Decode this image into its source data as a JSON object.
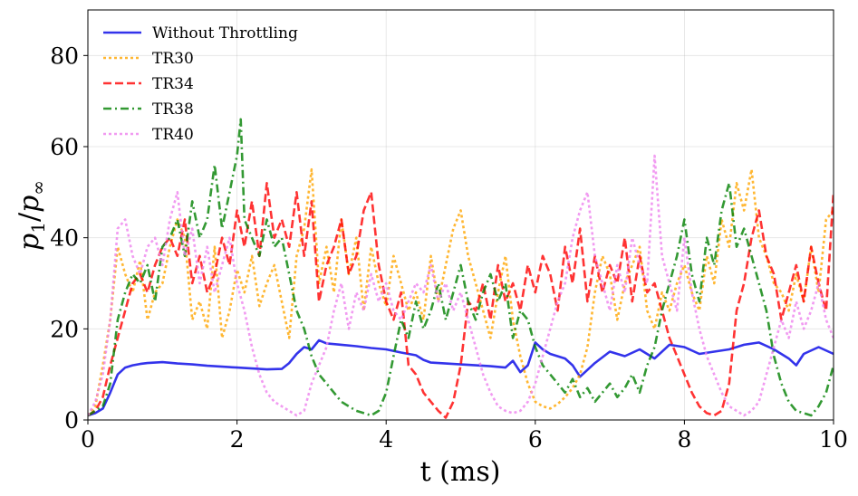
{
  "chart_data": {
    "type": "line",
    "title": "",
    "xlabel": "t (ms)",
    "ylabel_main": "p",
    "ylabel_num_sub": "1",
    "ylabel_slash": "/",
    "ylabel_den_sub": "∞",
    "xlim": [
      0,
      10
    ],
    "ylim": [
      0,
      90
    ],
    "xticks": [
      0,
      2,
      4,
      6,
      8,
      10
    ],
    "yticks": [
      0,
      20,
      40,
      60,
      80
    ],
    "grid": true,
    "legend_position": "top-left",
    "series": [
      {
        "name": "Without Throttling",
        "color": "#0000e6",
        "dash": "solid",
        "x": [
          0,
          0.1,
          0.2,
          0.3,
          0.4,
          0.5,
          0.6,
          0.7,
          0.8,
          0.9,
          1.0,
          1.2,
          1.4,
          1.6,
          1.8,
          2.0,
          2.2,
          2.4,
          2.6,
          2.7,
          2.8,
          2.9,
          3.0,
          3.1,
          3.2,
          3.4,
          3.6,
          3.8,
          4.0,
          4.2,
          4.4,
          4.5,
          4.6,
          4.8,
          5.0,
          5.2,
          5.4,
          5.6,
          5.7,
          5.8,
          5.9,
          6.0,
          6.1,
          6.2,
          6.4,
          6.5,
          6.6,
          6.8,
          7.0,
          7.2,
          7.4,
          7.6,
          7.8,
          8.0,
          8.2,
          8.4,
          8.6,
          8.8,
          9.0,
          9.2,
          9.4,
          9.5,
          9.6,
          9.8,
          10.0
        ],
        "values": [
          1,
          1.5,
          2.5,
          6,
          10,
          11.5,
          12,
          12.3,
          12.5,
          12.6,
          12.7,
          12.4,
          12.2,
          11.9,
          11.7,
          11.5,
          11.3,
          11.1,
          11.2,
          12.5,
          14.5,
          16,
          15.5,
          17.5,
          16.8,
          16.5,
          16.2,
          15.8,
          15.5,
          14.8,
          14.2,
          13.2,
          12.6,
          12.4,
          12.2,
          12,
          11.8,
          11.5,
          13,
          10.5,
          12,
          17,
          15.5,
          14.5,
          13.5,
          12,
          9.5,
          12.5,
          15,
          14,
          15.5,
          13.5,
          16.5,
          16,
          14.5,
          15,
          15.5,
          16.5,
          17,
          15.5,
          13.5,
          12,
          14.5,
          16,
          14.5
        ]
      },
      {
        "name": "TR30",
        "color": "#ffa500",
        "dash": "dotted",
        "x": [
          0,
          0.1,
          0.2,
          0.3,
          0.4,
          0.5,
          0.6,
          0.7,
          0.8,
          0.9,
          1.0,
          1.1,
          1.2,
          1.3,
          1.4,
          1.5,
          1.6,
          1.7,
          1.8,
          1.9,
          2.0,
          2.1,
          2.2,
          2.3,
          2.4,
          2.5,
          2.6,
          2.7,
          2.8,
          2.9,
          3.0,
          3.1,
          3.2,
          3.3,
          3.4,
          3.5,
          3.6,
          3.7,
          3.8,
          3.9,
          4.0,
          4.1,
          4.2,
          4.3,
          4.4,
          4.5,
          4.6,
          4.7,
          4.8,
          4.9,
          5.0,
          5.1,
          5.2,
          5.3,
          5.4,
          5.5,
          5.6,
          5.7,
          5.8,
          5.9,
          6.0,
          6.1,
          6.2,
          6.3,
          6.4,
          6.5,
          6.6,
          6.7,
          6.8,
          6.9,
          7.0,
          7.1,
          7.2,
          7.3,
          7.4,
          7.5,
          7.6,
          7.7,
          7.8,
          7.9,
          8.0,
          8.1,
          8.2,
          8.3,
          8.4,
          8.5,
          8.6,
          8.7,
          8.8,
          8.9,
          9.0,
          9.1,
          9.2,
          9.3,
          9.4,
          9.5,
          9.6,
          9.7,
          9.8,
          9.9,
          10.0
        ],
        "values": [
          1,
          3,
          12,
          22,
          38,
          32,
          28,
          35,
          22,
          28,
          30,
          38,
          44,
          40,
          22,
          26,
          20,
          38,
          18,
          24,
          33,
          28,
          36,
          25,
          30,
          34,
          26,
          18,
          36,
          42,
          55,
          30,
          38,
          28,
          44,
          32,
          40,
          24,
          38,
          30,
          25,
          36,
          30,
          24,
          28,
          22,
          36,
          26,
          34,
          42,
          46,
          36,
          30,
          24,
          18,
          28,
          36,
          22,
          14,
          8,
          4,
          3,
          2.5,
          3.5,
          5,
          7,
          10,
          16,
          28,
          36,
          32,
          22,
          30,
          34,
          38,
          24,
          20,
          28,
          24,
          30,
          34,
          28,
          24,
          36,
          30,
          44,
          38,
          52,
          46,
          55,
          40,
          36,
          30,
          28,
          24,
          32,
          26,
          38,
          28,
          44,
          46
        ]
      },
      {
        "name": "TR34",
        "color": "#ff0000",
        "dash": "dashed",
        "x": [
          0,
          0.1,
          0.2,
          0.3,
          0.4,
          0.5,
          0.6,
          0.7,
          0.8,
          0.9,
          1.0,
          1.1,
          1.2,
          1.3,
          1.4,
          1.5,
          1.6,
          1.7,
          1.8,
          1.9,
          2.0,
          2.1,
          2.2,
          2.3,
          2.4,
          2.5,
          2.6,
          2.7,
          2.8,
          2.9,
          3.0,
          3.1,
          3.2,
          3.3,
          3.4,
          3.5,
          3.6,
          3.7,
          3.8,
          3.9,
          4.0,
          4.1,
          4.2,
          4.3,
          4.4,
          4.5,
          4.6,
          4.7,
          4.8,
          4.9,
          5.0,
          5.1,
          5.2,
          5.3,
          5.4,
          5.5,
          5.6,
          5.7,
          5.8,
          5.9,
          6.0,
          6.1,
          6.2,
          6.3,
          6.4,
          6.5,
          6.6,
          6.7,
          6.8,
          6.9,
          7.0,
          7.1,
          7.2,
          7.3,
          7.4,
          7.5,
          7.6,
          7.7,
          7.8,
          7.9,
          8.0,
          8.1,
          8.2,
          8.3,
          8.4,
          8.5,
          8.6,
          8.7,
          8.8,
          8.9,
          9.0,
          9.1,
          9.2,
          9.3,
          9.4,
          9.5,
          9.6,
          9.7,
          9.8,
          9.9,
          10.0
        ],
        "values": [
          1,
          2,
          5,
          12,
          18,
          24,
          30,
          32,
          28,
          34,
          38,
          40,
          36,
          44,
          30,
          36,
          28,
          32,
          40,
          34,
          46,
          38,
          48,
          36,
          52,
          40,
          44,
          38,
          50,
          36,
          48,
          26,
          34,
          38,
          44,
          32,
          36,
          46,
          50,
          34,
          26,
          22,
          28,
          12,
          10,
          6,
          4,
          2,
          0.5,
          4,
          12,
          26,
          24,
          30,
          22,
          34,
          26,
          30,
          24,
          34,
          28,
          36,
          32,
          24,
          38,
          30,
          42,
          26,
          36,
          28,
          34,
          30,
          40,
          26,
          36,
          28,
          30,
          24,
          18,
          14,
          10,
          6,
          3,
          1.5,
          1,
          2,
          8,
          24,
          30,
          40,
          46,
          36,
          32,
          22,
          28,
          34,
          26,
          38,
          30,
          24,
          50
        ]
      },
      {
        "name": "TR38",
        "color": "#008000",
        "dash": "dashdot",
        "x": [
          0,
          0.1,
          0.2,
          0.3,
          0.4,
          0.5,
          0.6,
          0.7,
          0.8,
          0.9,
          1.0,
          1.1,
          1.2,
          1.3,
          1.4,
          1.5,
          1.6,
          1.7,
          1.8,
          1.9,
          2.0,
          2.05,
          2.1,
          2.2,
          2.3,
          2.4,
          2.5,
          2.6,
          2.7,
          2.8,
          2.9,
          3.0,
          3.1,
          3.2,
          3.3,
          3.4,
          3.5,
          3.6,
          3.7,
          3.8,
          3.9,
          4.0,
          4.1,
          4.2,
          4.3,
          4.4,
          4.5,
          4.6,
          4.7,
          4.8,
          4.9,
          5.0,
          5.1,
          5.2,
          5.3,
          5.4,
          5.5,
          5.6,
          5.7,
          5.8,
          5.9,
          6.0,
          6.1,
          6.2,
          6.3,
          6.4,
          6.5,
          6.6,
          6.7,
          6.8,
          6.9,
          7.0,
          7.1,
          7.2,
          7.3,
          7.4,
          7.5,
          7.6,
          7.7,
          7.8,
          7.9,
          8.0,
          8.1,
          8.2,
          8.3,
          8.4,
          8.5,
          8.6,
          8.7,
          8.8,
          8.9,
          9.0,
          9.1,
          9.2,
          9.3,
          9.4,
          9.5,
          9.6,
          9.7,
          9.8,
          9.9,
          10.0
        ],
        "values": [
          1,
          2,
          3,
          8,
          22,
          28,
          32,
          30,
          34,
          26,
          38,
          40,
          44,
          36,
          48,
          40,
          44,
          56,
          42,
          50,
          58,
          66,
          44,
          40,
          36,
          44,
          38,
          40,
          32,
          24,
          20,
          14,
          10,
          8,
          6,
          4,
          3,
          2,
          1.5,
          1,
          2,
          6,
          14,
          22,
          18,
          26,
          20,
          24,
          30,
          22,
          28,
          34,
          26,
          22,
          28,
          32,
          26,
          30,
          18,
          24,
          22,
          16,
          12,
          10,
          8,
          6,
          9,
          5,
          7,
          4,
          6,
          8,
          5,
          7,
          10,
          6,
          12,
          16,
          24,
          30,
          36,
          44,
          32,
          26,
          40,
          34,
          46,
          52,
          38,
          42,
          36,
          30,
          24,
          14,
          8,
          4,
          2,
          1.5,
          1,
          3,
          6,
          12
        ]
      },
      {
        "name": "TR40",
        "color": "#ee82ee",
        "dash": "dotted",
        "x": [
          0,
          0.1,
          0.2,
          0.3,
          0.4,
          0.5,
          0.6,
          0.7,
          0.8,
          0.9,
          1.0,
          1.1,
          1.2,
          1.3,
          1.4,
          1.5,
          1.6,
          1.7,
          1.8,
          1.9,
          2.0,
          2.1,
          2.2,
          2.3,
          2.4,
          2.5,
          2.6,
          2.7,
          2.8,
          2.9,
          3.0,
          3.1,
          3.2,
          3.3,
          3.4,
          3.5,
          3.6,
          3.7,
          3.8,
          3.9,
          4.0,
          4.1,
          4.2,
          4.3,
          4.4,
          4.5,
          4.6,
          4.7,
          4.8,
          4.9,
          5.0,
          5.1,
          5.2,
          5.3,
          5.4,
          5.5,
          5.6,
          5.7,
          5.8,
          5.9,
          6.0,
          6.1,
          6.2,
          6.3,
          6.4,
          6.5,
          6.6,
          6.7,
          6.8,
          6.9,
          7.0,
          7.1,
          7.2,
          7.3,
          7.4,
          7.5,
          7.6,
          7.7,
          7.8,
          7.9,
          8.0,
          8.1,
          8.2,
          8.3,
          8.4,
          8.5,
          8.6,
          8.7,
          8.8,
          8.9,
          9.0,
          9.1,
          9.2,
          9.3,
          9.4,
          9.5,
          9.6,
          9.7,
          9.8,
          9.9,
          10.0
        ],
        "values": [
          1,
          4,
          10,
          22,
          42,
          44,
          36,
          32,
          38,
          40,
          34,
          44,
          50,
          36,
          42,
          30,
          38,
          28,
          34,
          40,
          30,
          24,
          16,
          10,
          6,
          4,
          3,
          2,
          1,
          2,
          8,
          12,
          16,
          24,
          30,
          20,
          28,
          24,
          32,
          26,
          30,
          24,
          22,
          26,
          30,
          28,
          34,
          26,
          30,
          24,
          28,
          22,
          16,
          10,
          6,
          3,
          2,
          1.5,
          2,
          4,
          8,
          14,
          20,
          26,
          30,
          40,
          46,
          50,
          36,
          30,
          24,
          34,
          28,
          40,
          34,
          30,
          58,
          36,
          30,
          24,
          40,
          28,
          20,
          14,
          10,
          6,
          3,
          2,
          1,
          2,
          4,
          10,
          16,
          22,
          18,
          26,
          20,
          24,
          30,
          22,
          18
        ]
      }
    ]
  }
}
